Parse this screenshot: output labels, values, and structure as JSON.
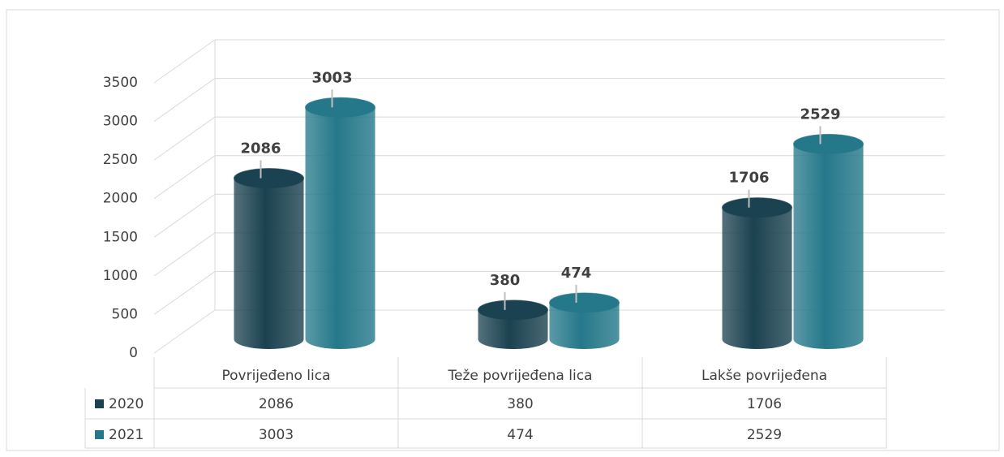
{
  "chart_data": {
    "type": "bar3d",
    "categories": [
      "Povrijeđeno lica",
      "Teže povrijeđena lica",
      "Lakše povrijeđena"
    ],
    "series": [
      {
        "name": "2020",
        "color": "#1b4250",
        "values": [
          2086,
          380,
          1706
        ]
      },
      {
        "name": "2021",
        "color": "#25788a",
        "values": [
          3003,
          474,
          2529
        ]
      }
    ],
    "ylim": [
      0,
      3500
    ],
    "yticks": [
      0,
      500,
      1000,
      1500,
      2000,
      2500,
      3000,
      3500
    ],
    "grid": true,
    "data_table": true
  }
}
